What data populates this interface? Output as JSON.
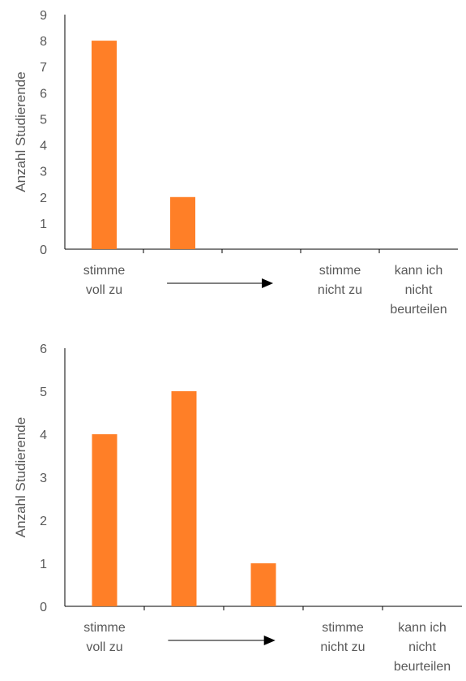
{
  "chart_data": [
    {
      "type": "bar",
      "title": "",
      "xlabel": "",
      "ylabel": "Anzahl Studierende",
      "ylim": [
        0,
        9
      ],
      "yticks": [
        0,
        1,
        2,
        3,
        4,
        5,
        6,
        7,
        8,
        9
      ],
      "categories": [
        [
          "stimme",
          "voll  zu"
        ],
        [],
        [],
        [
          "stimme",
          "nicht zu"
        ],
        [
          "kann ich",
          "nicht",
          "beurteilen"
        ]
      ],
      "values": [
        8,
        2,
        0,
        0,
        0
      ],
      "bar_color": "#FF7F27",
      "grid": false,
      "legend": "none",
      "annotations": [
        "arrow pointing right from category 2 to category 3"
      ]
    },
    {
      "type": "bar",
      "title": "",
      "xlabel": "",
      "ylabel": "Anzahl Studierende",
      "ylim": [
        0,
        6
      ],
      "yticks": [
        0,
        1,
        2,
        3,
        4,
        5,
        6
      ],
      "categories": [
        [
          "stimme",
          "voll  zu"
        ],
        [],
        [],
        [
          "stimme",
          "nicht zu"
        ],
        [
          "kann ich",
          "nicht",
          "beurteilen"
        ]
      ],
      "values": [
        4,
        5,
        1,
        0,
        0
      ],
      "bar_color": "#FF7F27",
      "grid": false,
      "legend": "none",
      "annotations": [
        "arrow pointing right from category 2 to category 3"
      ]
    }
  ]
}
